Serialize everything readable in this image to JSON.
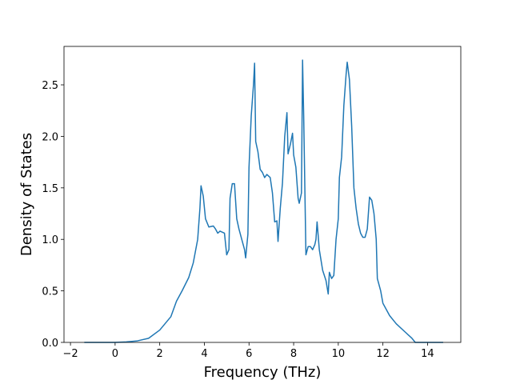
{
  "chart_data": {
    "type": "line",
    "xlabel": "Frequency (THz)",
    "ylabel": "Density of States",
    "color": "#1f77b4",
    "xlim": [
      -2.29,
      15.49
    ],
    "ylim": [
      0,
      2.873
    ],
    "xticks": [
      {
        "value": -2,
        "label": "−2"
      },
      0,
      2,
      4,
      6,
      8,
      10,
      12,
      14
    ],
    "yticks": [
      {
        "value": 0,
        "label": "0.0"
      },
      {
        "value": 0.5,
        "label": "0.5"
      },
      {
        "value": 1,
        "label": "1.0"
      },
      {
        "value": 1.5,
        "label": "1.5"
      },
      {
        "value": 2,
        "label": "2.0"
      },
      {
        "value": 2.5,
        "label": "2.5"
      }
    ],
    "x": [
      -1.38,
      0,
      0.5,
      1,
      1.5,
      2,
      2.5,
      2.75,
      3,
      3.3,
      3.5,
      3.7,
      3.8,
      3.85,
      3.95,
      4.05,
      4.2,
      4.4,
      4.5,
      4.6,
      4.7,
      4.9,
      5.0,
      5.1,
      5.15,
      5.25,
      5.35,
      5.45,
      5.55,
      5.7,
      5.8,
      5.85,
      5.95,
      6.0,
      6.1,
      6.2,
      6.25,
      6.3,
      6.4,
      6.5,
      6.6,
      6.7,
      6.8,
      6.95,
      7.05,
      7.15,
      7.25,
      7.3,
      7.4,
      7.5,
      7.6,
      7.7,
      7.75,
      7.85,
      7.95,
      8.0,
      8.1,
      8.2,
      8.25,
      8.35,
      8.4,
      8.45,
      8.55,
      8.65,
      8.75,
      8.85,
      8.95,
      9.0,
      9.05,
      9.15,
      9.3,
      9.45,
      9.55,
      9.6,
      9.7,
      9.8,
      9.9,
      10.0,
      10.05,
      10.15,
      10.25,
      10.35,
      10.4,
      10.5,
      10.6,
      10.7,
      10.8,
      10.9,
      11.0,
      11.1,
      11.2,
      11.3,
      11.4,
      11.5,
      11.6,
      11.7,
      11.75,
      11.9,
      12.0,
      12.3,
      12.6,
      13.0,
      13.3,
      13.45,
      14.7
    ],
    "values": [
      0,
      0,
      0.005,
      0.015,
      0.04,
      0.12,
      0.25,
      0.4,
      0.5,
      0.63,
      0.77,
      1.0,
      1.3,
      1.52,
      1.42,
      1.2,
      1.12,
      1.13,
      1.1,
      1.06,
      1.08,
      1.06,
      0.85,
      0.9,
      1.4,
      1.54,
      1.54,
      1.2,
      1.1,
      0.98,
      0.9,
      0.82,
      1.05,
      1.7,
      2.2,
      2.5,
      2.71,
      1.95,
      1.85,
      1.68,
      1.65,
      1.6,
      1.63,
      1.6,
      1.45,
      1.17,
      1.18,
      0.98,
      1.3,
      1.55,
      2.0,
      2.23,
      1.83,
      1.92,
      2.03,
      1.82,
      1.7,
      1.4,
      1.35,
      1.45,
      2.74,
      2.2,
      0.85,
      0.93,
      0.93,
      0.9,
      0.95,
      1.0,
      1.17,
      0.9,
      0.7,
      0.6,
      0.47,
      0.68,
      0.62,
      0.65,
      1.0,
      1.2,
      1.6,
      1.8,
      2.3,
      2.6,
      2.72,
      2.55,
      2.1,
      1.5,
      1.3,
      1.15,
      1.06,
      1.02,
      1.02,
      1.1,
      1.41,
      1.38,
      1.25,
      1.0,
      0.62,
      0.5,
      0.38,
      0.26,
      0.18,
      0.1,
      0.04,
      0,
      0
    ]
  }
}
